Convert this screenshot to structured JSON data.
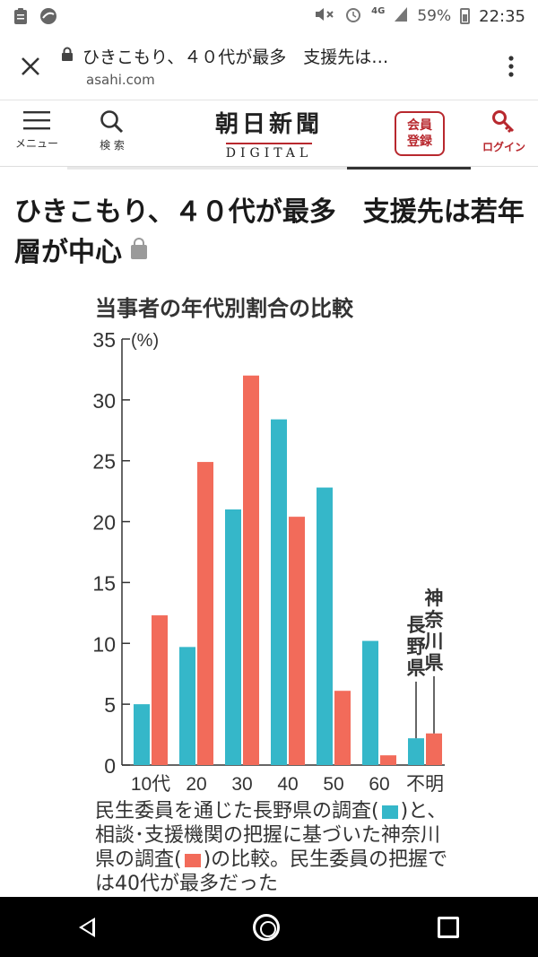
{
  "status": {
    "network": "4G",
    "battery": "59%",
    "time": "22:35"
  },
  "browser": {
    "title": "ひきこもり、４０代が最多　支援先は…",
    "domain": "asahi.com"
  },
  "site_nav": {
    "menu_label": "メニュー",
    "search_label": "検 索",
    "logo_main": "朝日新聞",
    "logo_sub": "DIGITAL",
    "member_line1": "会員",
    "member_line2": "登録",
    "login_label": "ログイン"
  },
  "article": {
    "headline": "ひきこもり、４０代が最多　支援先は若年層が中心"
  },
  "caption": {
    "part1": "民生委員を通じた長野県の調査(",
    "part2": ")と、相談･支援機関の把握に基づいた神奈川県の調査(",
    "part3": ")の比較。民生委員の把握では40代が最多だった"
  },
  "chart_data": {
    "type": "bar",
    "title": "当事者の年代別割合の比較",
    "ylabel": "(%)",
    "ylim": [
      0,
      35
    ],
    "yticks": [
      0,
      5,
      10,
      15,
      20,
      25,
      30,
      35
    ],
    "categories": [
      "10代",
      "20",
      "30",
      "40",
      "50",
      "60",
      "不明"
    ],
    "series": [
      {
        "name": "長野県",
        "color": "#35b7c9",
        "values": [
          5.0,
          9.7,
          21.0,
          28.4,
          22.8,
          10.2,
          2.2
        ]
      },
      {
        "name": "神奈川県",
        "color": "#f26b5a",
        "values": [
          12.3,
          24.9,
          32.0,
          20.4,
          6.1,
          0.8,
          2.6
        ]
      }
    ],
    "legend": "vertical labels above 不明 bars"
  }
}
